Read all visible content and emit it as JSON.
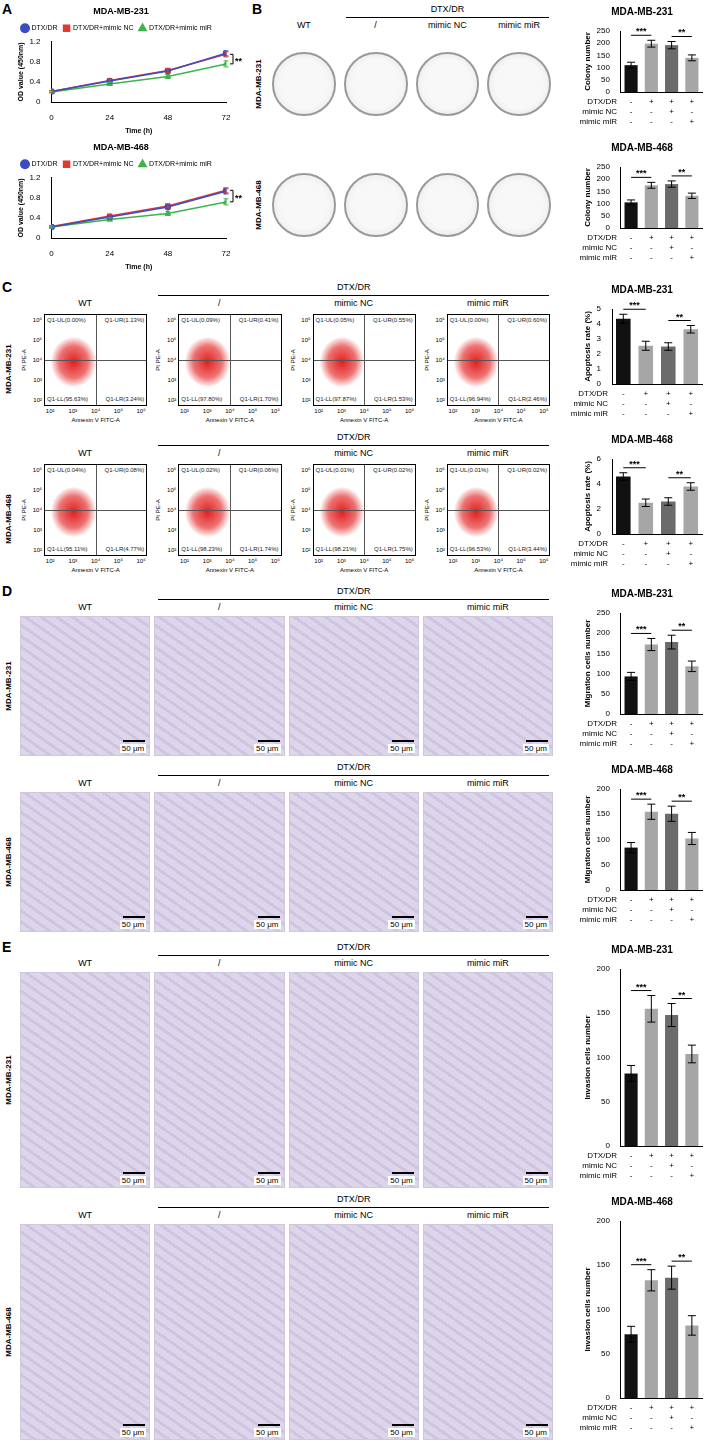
{
  "panel_letters": [
    "A",
    "B",
    "C",
    "D",
    "E"
  ],
  "chart_data": [
    {
      "type": "line",
      "title": "MDA-MB-231",
      "x_label": "Time (h)",
      "y_label": "OD value (450nm)",
      "x": [
        0,
        24,
        48,
        72
      ],
      "series": [
        {
          "name": "DTX/DR",
          "color": "#3b4cc0",
          "marker": "circle",
          "values": [
            0.21,
            0.42,
            0.62,
            0.97
          ],
          "errors": [
            0.02,
            0.03,
            0.04,
            0.05
          ]
        },
        {
          "name": "DTX/DR+mimic NC",
          "color": "#e23a2e",
          "marker": "square",
          "values": [
            0.21,
            0.43,
            0.63,
            0.95
          ],
          "errors": [
            0.02,
            0.03,
            0.04,
            0.05
          ]
        },
        {
          "name": "DTX/DR+mimic miR",
          "color": "#3cb44b",
          "marker": "triangle",
          "values": [
            0.2,
            0.36,
            0.51,
            0.76
          ],
          "errors": [
            0.02,
            0.03,
            0.04,
            0.06
          ]
        }
      ],
      "xlim": [
        0,
        72
      ],
      "xticks": [
        0,
        24,
        48,
        72
      ],
      "ylim": [
        0,
        1.2
      ],
      "yticks": [
        0,
        0.4,
        0.8,
        1.2
      ],
      "grid": false,
      "legend": "top",
      "significance": [
        {
          "series": [
            1,
            2
          ],
          "label": "**"
        }
      ]
    },
    {
      "type": "line",
      "title": "MDA-MB-468",
      "x_label": "Time (h)",
      "y_label": "OD value (450nm)",
      "x": [
        0,
        24,
        48,
        72
      ],
      "series": [
        {
          "name": "DTX/DR",
          "color": "#3b4cc0",
          "marker": "circle",
          "values": [
            0.22,
            0.42,
            0.62,
            0.93
          ],
          "errors": [
            0.02,
            0.03,
            0.04,
            0.05
          ]
        },
        {
          "name": "DTX/DR+mimic NC",
          "color": "#e23a2e",
          "marker": "square",
          "values": [
            0.23,
            0.44,
            0.64,
            0.95
          ],
          "errors": [
            0.02,
            0.03,
            0.04,
            0.05
          ]
        },
        {
          "name": "DTX/DR+mimic miR",
          "color": "#3cb44b",
          "marker": "triangle",
          "values": [
            0.22,
            0.37,
            0.49,
            0.72
          ],
          "errors": [
            0.02,
            0.03,
            0.04,
            0.06
          ]
        }
      ],
      "xlim": [
        0,
        72
      ],
      "xticks": [
        0,
        24,
        48,
        72
      ],
      "ylim": [
        0,
        1.2
      ],
      "yticks": [
        0,
        0.4,
        0.8,
        1.2
      ],
      "grid": false,
      "legend": "top",
      "significance": [
        {
          "series": [
            1,
            2
          ],
          "label": "**"
        }
      ]
    },
    {
      "type": "bar",
      "title": "MDA-MB-231",
      "y_label": "Colony number",
      "categories": [
        null,
        null,
        null,
        null
      ],
      "values": [
        110,
        198,
        192,
        140
      ],
      "errors": [
        12,
        14,
        15,
        12
      ],
      "colors": [
        "#111111",
        "#a6a6a6",
        "#6b6b6b",
        "#a6a6a6"
      ],
      "ylim": [
        0,
        250
      ],
      "yticks": [
        0,
        50,
        100,
        150,
        200,
        250
      ],
      "grid": false,
      "condition_table": {
        "rows": [
          "DTX/DR",
          "mimic NC",
          "mimic miR"
        ],
        "marks": [
          [
            "-",
            "+",
            "+",
            "+"
          ],
          [
            "-",
            "-",
            "+",
            "-"
          ],
          [
            "-",
            "-",
            "-",
            "+"
          ]
        ]
      },
      "significance": [
        {
          "from": 0,
          "to": 1,
          "label": "***"
        },
        {
          "from": 2,
          "to": 3,
          "label": "**"
        }
      ]
    },
    {
      "type": "bar",
      "title": "MDA-MB-468",
      "y_label": "Colony number",
      "categories": [
        null,
        null,
        null,
        null
      ],
      "values": [
        105,
        175,
        180,
        132
      ],
      "errors": [
        10,
        12,
        13,
        11
      ],
      "colors": [
        "#111111",
        "#a6a6a6",
        "#6b6b6b",
        "#a6a6a6"
      ],
      "ylim": [
        0,
        250
      ],
      "yticks": [
        0,
        50,
        100,
        150,
        200,
        250
      ],
      "grid": false,
      "condition_table": {
        "rows": [
          "DTX/DR",
          "mimic NC",
          "mimic miR"
        ],
        "marks": [
          [
            "-",
            "+",
            "+",
            "+"
          ],
          [
            "-",
            "-",
            "+",
            "-"
          ],
          [
            "-",
            "-",
            "-",
            "+"
          ]
        ]
      },
      "significance": [
        {
          "from": 0,
          "to": 1,
          "label": "***"
        },
        {
          "from": 2,
          "to": 3,
          "label": "**"
        }
      ]
    },
    {
      "type": "bar",
      "title": "MDA-MB-231",
      "y_label": "Apoptosis rate (%)",
      "categories": [
        null,
        null,
        null,
        null
      ],
      "values": [
        4.35,
        2.55,
        2.5,
        3.65
      ],
      "errors": [
        0.3,
        0.3,
        0.25,
        0.25
      ],
      "colors": [
        "#111111",
        "#a6a6a6",
        "#6b6b6b",
        "#a6a6a6"
      ],
      "ylim": [
        0,
        5
      ],
      "yticks": [
        0,
        1,
        2,
        3,
        4,
        5
      ],
      "grid": false,
      "condition_table": {
        "rows": [
          "DTX/DR",
          "mimic NC",
          "mimic miR"
        ],
        "marks": [
          [
            "-",
            "+",
            "+",
            "+"
          ],
          [
            "-",
            "-",
            "+",
            "-"
          ],
          [
            "-",
            "-",
            "-",
            "+"
          ]
        ]
      },
      "significance": [
        {
          "from": 0,
          "to": 1,
          "label": "***"
        },
        {
          "from": 2,
          "to": 3,
          "label": "**"
        }
      ]
    },
    {
      "type": "bar",
      "title": "MDA-MB-468",
      "y_label": "Apoptosis rate (%)",
      "categories": [
        null,
        null,
        null,
        null
      ],
      "values": [
        4.6,
        2.5,
        2.6,
        3.8
      ],
      "errors": [
        0.3,
        0.3,
        0.3,
        0.3
      ],
      "colors": [
        "#111111",
        "#a6a6a6",
        "#6b6b6b",
        "#a6a6a6"
      ],
      "ylim": [
        0,
        6
      ],
      "yticks": [
        0,
        2,
        4,
        6
      ],
      "grid": false,
      "condition_table": {
        "rows": [
          "DTX/DR",
          "mimic NC",
          "mimic miR"
        ],
        "marks": [
          [
            "-",
            "+",
            "+",
            "+"
          ],
          [
            "-",
            "-",
            "+",
            "-"
          ],
          [
            "-",
            "-",
            "-",
            "+"
          ]
        ]
      },
      "significance": [
        {
          "from": 0,
          "to": 1,
          "label": "***"
        },
        {
          "from": 2,
          "to": 3,
          "label": "**"
        }
      ]
    },
    {
      "type": "bar",
      "title": "MDA-MB-231",
      "y_label": "Migration cells number",
      "categories": [
        null,
        null,
        null,
        null
      ],
      "values": [
        93,
        172,
        178,
        118
      ],
      "errors": [
        10,
        15,
        17,
        13
      ],
      "colors": [
        "#111111",
        "#a6a6a6",
        "#6b6b6b",
        "#a6a6a6"
      ],
      "ylim": [
        0,
        250
      ],
      "yticks": [
        0,
        50,
        100,
        150,
        200,
        250
      ],
      "grid": false,
      "condition_table": {
        "rows": [
          "DTX/DR",
          "mimic NC",
          "mimic miR"
        ],
        "marks": [
          [
            "-",
            "+",
            "+",
            "+"
          ],
          [
            "-",
            "-",
            "+",
            "-"
          ],
          [
            "-",
            "-",
            "-",
            "+"
          ]
        ]
      },
      "significance": [
        {
          "from": 0,
          "to": 1,
          "label": "***"
        },
        {
          "from": 2,
          "to": 3,
          "label": "**"
        }
      ]
    },
    {
      "type": "bar",
      "title": "MDA-MB-468",
      "y_label": "Migration cells number",
      "categories": [
        null,
        null,
        null,
        null
      ],
      "values": [
        84,
        155,
        151,
        102
      ],
      "errors": [
        10,
        15,
        15,
        12
      ],
      "colors": [
        "#111111",
        "#a6a6a6",
        "#6b6b6b",
        "#a6a6a6"
      ],
      "ylim": [
        0,
        200
      ],
      "yticks": [
        0,
        50,
        100,
        150,
        200
      ],
      "grid": false,
      "condition_table": {
        "rows": [
          "DTX/DR",
          "mimic NC",
          "mimic miR"
        ],
        "marks": [
          [
            "-",
            "+",
            "+",
            "+"
          ],
          [
            "-",
            "-",
            "+",
            "-"
          ],
          [
            "-",
            "-",
            "-",
            "+"
          ]
        ]
      },
      "significance": [
        {
          "from": 0,
          "to": 1,
          "label": "***"
        },
        {
          "from": 2,
          "to": 3,
          "label": "**"
        }
      ]
    },
    {
      "type": "bar",
      "title": "MDA-MB-231",
      "y_label": "Invasion cells number",
      "categories": [
        null,
        null,
        null,
        null
      ],
      "values": [
        82,
        155,
        148,
        104
      ],
      "errors": [
        9,
        15,
        13,
        10
      ],
      "colors": [
        "#111111",
        "#a6a6a6",
        "#6b6b6b",
        "#a6a6a6"
      ],
      "ylim": [
        0,
        200
      ],
      "yticks": [
        0,
        50,
        100,
        150,
        200
      ],
      "grid": false,
      "condition_table": {
        "rows": [
          "DTX/DR",
          "mimic NC",
          "mimic miR"
        ],
        "marks": [
          [
            "-",
            "+",
            "+",
            "+"
          ],
          [
            "-",
            "-",
            "+",
            "-"
          ],
          [
            "-",
            "-",
            "-",
            "+"
          ]
        ]
      },
      "significance": [
        {
          "from": 0,
          "to": 1,
          "label": "***"
        },
        {
          "from": 2,
          "to": 3,
          "label": "**"
        }
      ]
    },
    {
      "type": "bar",
      "title": "MDA-MB-468",
      "y_label": "Invasion cells number",
      "categories": [
        null,
        null,
        null,
        null
      ],
      "values": [
        72,
        133,
        136,
        82
      ],
      "errors": [
        9,
        12,
        13,
        11
      ],
      "colors": [
        "#111111",
        "#a6a6a6",
        "#6b6b6b",
        "#a6a6a6"
      ],
      "ylim": [
        0,
        200
      ],
      "yticks": [
        0,
        50,
        100,
        150,
        200
      ],
      "grid": false,
      "condition_table": {
        "rows": [
          "DTX/DR",
          "mimic NC",
          "mimic miR"
        ],
        "marks": [
          [
            "-",
            "+",
            "+",
            "+"
          ],
          [
            "-",
            "-",
            "+",
            "-"
          ],
          [
            "-",
            "-",
            "-",
            "+"
          ]
        ]
      },
      "significance": [
        {
          "from": 0,
          "to": 1,
          "label": "***"
        },
        {
          "from": 2,
          "to": 3,
          "label": "**"
        }
      ]
    }
  ],
  "image_panels": [
    {
      "kind": "colony",
      "rows": [
        {
          "cell_line": "MDA-MB-231",
          "header": {
            "first": "WT",
            "group": "DTX/DR",
            "columns": [
              "/",
              "mimic NC",
              "mimic miR"
            ]
          }
        },
        {
          "cell_line": "MDA-MB-468",
          "header": null
        }
      ]
    },
    {
      "kind": "flow",
      "x_label": "Annexin V FITC-A",
      "y_label": "PI PE-A",
      "x_tick_labels": [
        "10²",
        "10³",
        "10⁴",
        "10⁵",
        "10⁶"
      ],
      "y_tick_labels": [
        "10²",
        "10³",
        "10⁴",
        "10⁵",
        "10⁶"
      ],
      "rows": [
        {
          "cell_line": "MDA-MB-231",
          "header": {
            "first": "WT",
            "group": "DTX/DR",
            "columns": [
              "/",
              "mimic NC",
              "mimic miR"
            ]
          },
          "plots": [
            {
              "UL": "Q1-UL(0.00%)",
              "UR": "Q1-UR(1.13%)",
              "LL": "Q1-LL(95.63%)",
              "LR": "Q1-LR(3.24%)"
            },
            {
              "UL": "Q1-UL(0.09%)",
              "UR": "Q1-UR(0.41%)",
              "LL": "Q1-LL(97.80%)",
              "LR": "Q1-LR(1.70%)"
            },
            {
              "UL": "Q1-UL(0.05%)",
              "UR": "Q1-UR(0.55%)",
              "LL": "Q1-LL(97.87%)",
              "LR": "Q1-LR(1.53%)"
            },
            {
              "UL": "Q1-UL(0.00%)",
              "UR": "Q1-UR(0.60%)",
              "LL": "Q1-LL(96.94%)",
              "LR": "Q1-LR(2.46%)"
            }
          ]
        },
        {
          "cell_line": "MDA-MB-468",
          "header": {
            "first": "WT",
            "group": "DTX/DR",
            "columns": [
              "/",
              "mimic NC",
              "mimic miR"
            ]
          },
          "plots": [
            {
              "UL": "Q1-UL(0.04%)",
              "UR": "Q1-UR(0.08%)",
              "LL": "Q1-LL(95.11%)",
              "LR": "Q1-LR(4.77%)"
            },
            {
              "UL": "Q1-UL(0.02%)",
              "UR": "Q1-UR(0.06%)",
              "LL": "Q1-LL(98.23%)",
              "LR": "Q1-LR(1.74%)"
            },
            {
              "UL": "Q1-UL(0.01%)",
              "UR": "Q1-UR(0.02%)",
              "LL": "Q1-LL(98.21%)",
              "LR": "Q1-LR(1.75%)"
            },
            {
              "UL": "Q1-UL(0.01%)",
              "UR": "Q1-UR(0.02%)",
              "LL": "Q1-LL(96.53%)",
              "LR": "Q1-LR(3.44%)"
            }
          ]
        }
      ]
    },
    {
      "kind": "micrograph",
      "scale_bar": "50 μm",
      "rows": [
        {
          "cell_line": "MDA-MB-231",
          "header": {
            "first": "WT",
            "group": "DTX/DR",
            "columns": [
              "/",
              "mimic NC",
              "mimic miR"
            ]
          }
        },
        {
          "cell_line": "MDA-MB-468",
          "header": {
            "first": "WT",
            "group": "DTX/DR",
            "columns": [
              "/",
              "mimic NC",
              "mimic miR"
            ]
          }
        }
      ]
    },
    {
      "kind": "micrograph",
      "scale_bar": "50 μm",
      "rows": [
        {
          "cell_line": "MDA-MB-231",
          "header": {
            "first": "WT",
            "group": "DTX/DR",
            "columns": [
              "/",
              "mimic NC",
              "mimic miR"
            ]
          }
        },
        {
          "cell_line": "MDA-MB-468",
          "header": {
            "first": "WT",
            "group": "DTX/DR",
            "columns": [
              "/",
              "mimic NC",
              "mimic miR"
            ]
          }
        }
      ]
    }
  ]
}
